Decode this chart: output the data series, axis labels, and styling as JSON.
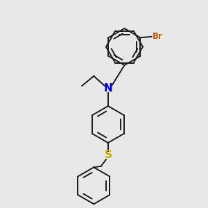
{
  "background_color": "#e8e8e8",
  "bond_color": "#1a1a1a",
  "N_color": "#0000cc",
  "S_color": "#ccaa00",
  "Br_color": "#b85c00",
  "figsize": [
    3.0,
    3.0
  ],
  "dpi": 100,
  "xlim": [
    0,
    10
  ],
  "ylim": [
    0,
    10
  ]
}
